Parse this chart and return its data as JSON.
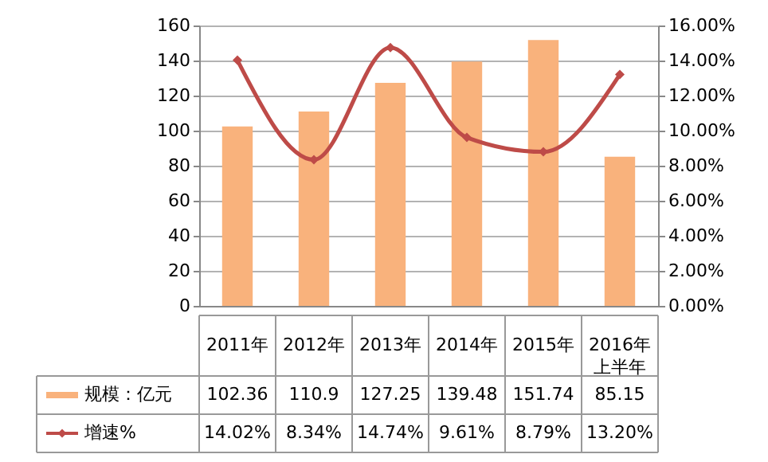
{
  "chart_data": {
    "type": "bar",
    "categories": [
      "2011年",
      "2012年",
      "2013年",
      "2014年",
      "2015年",
      "2016年上半年"
    ],
    "series": [
      {
        "name": "规模：亿元",
        "color": "#f9b27c",
        "values": [
          102.36,
          110.9,
          127.25,
          139.48,
          151.74,
          85.15
        ],
        "value_labels": [
          "102.36",
          "110.9",
          "127.25",
          "139.48",
          "151.74",
          "85.15"
        ]
      },
      {
        "name": "增速%",
        "type": "line",
        "axis": "y2",
        "color": "#be4b48",
        "values": [
          14.02,
          8.34,
          14.74,
          9.61,
          8.79,
          13.2
        ],
        "value_labels": [
          "14.02%",
          "8.34%",
          "14.74%",
          "9.61%",
          "8.79%",
          "13.20%"
        ]
      }
    ],
    "ylim": [
      0,
      160
    ],
    "yticks": [
      0,
      20,
      40,
      60,
      80,
      100,
      120,
      140,
      160
    ],
    "y2lim": [
      0,
      16
    ],
    "y2ticks": [
      {
        "value": 0,
        "label": "0.00%"
      },
      {
        "value": 2,
        "label": "2.00%"
      },
      {
        "value": 4,
        "label": "4.00%"
      },
      {
        "value": 6,
        "label": "6.00%"
      },
      {
        "value": 8,
        "label": "8.00%"
      },
      {
        "value": 10,
        "label": "10.00%"
      },
      {
        "value": 12,
        "label": "12.00%"
      },
      {
        "value": 14,
        "label": "14.00%"
      },
      {
        "value": 16,
        "label": "16.00%"
      }
    ],
    "grid": "y",
    "legend": "bottom",
    "marker": "diamond",
    "line_style": "solid"
  }
}
